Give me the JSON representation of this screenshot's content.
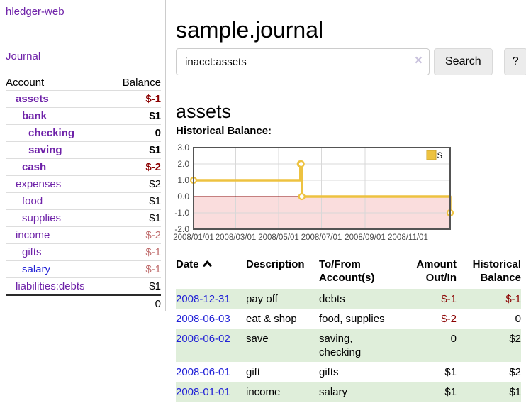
{
  "palette": {
    "purple": "#6e21a8",
    "blue": "#2222d6",
    "red_strong": "#8b0000",
    "red_faded": "#c06d6d",
    "black": "#000000",
    "green_row": "#dfeeda",
    "gold": "#edc240",
    "pink": "#fadddd",
    "zero_line": "#8b0000"
  },
  "sidebar": {
    "app_title": "hledger-web",
    "nav_journal": "Journal",
    "accounts": {
      "header_account": "Account",
      "header_balance": "Balance",
      "rows": [
        {
          "name": "assets",
          "depth": 1,
          "bold": true,
          "name_color": "purple",
          "balance": "$-1",
          "balance_color": "red_strong"
        },
        {
          "name": "bank",
          "depth": 2,
          "bold": true,
          "name_color": "purple",
          "balance": "$1",
          "balance_color": "black"
        },
        {
          "name": "checking",
          "depth": 3,
          "bold": true,
          "name_color": "purple",
          "balance": "0",
          "balance_color": "black"
        },
        {
          "name": "saving",
          "depth": 3,
          "bold": true,
          "name_color": "purple",
          "balance": "$1",
          "balance_color": "black"
        },
        {
          "name": "cash",
          "depth": 2,
          "bold": true,
          "name_color": "purple",
          "balance": "$-2",
          "balance_color": "red_strong"
        },
        {
          "name": "expenses",
          "depth": 1,
          "bold": false,
          "name_color": "purple",
          "balance": "$2",
          "balance_color": "black"
        },
        {
          "name": "food",
          "depth": 2,
          "bold": false,
          "name_color": "purple",
          "balance": "$1",
          "balance_color": "black"
        },
        {
          "name": "supplies",
          "depth": 2,
          "bold": false,
          "name_color": "purple",
          "balance": "$1",
          "balance_color": "black"
        },
        {
          "name": "income",
          "depth": 1,
          "bold": false,
          "name_color": "purple",
          "balance": "$-2",
          "balance_color": "red_faded"
        },
        {
          "name": "gifts",
          "depth": 2,
          "bold": false,
          "name_color": "purple",
          "balance": "$-1",
          "balance_color": "red_faded"
        },
        {
          "name": "salary",
          "depth": 2,
          "bold": false,
          "name_color": "blue",
          "balance": "$-1",
          "balance_color": "red_faded"
        },
        {
          "name": "liabilities:debts",
          "depth": 1,
          "bold": false,
          "name_color": "purple",
          "balance": "$1",
          "balance_color": "black"
        }
      ],
      "total": "0"
    }
  },
  "main": {
    "title": "sample.journal",
    "search": {
      "value": "inacct:assets",
      "clear_label": "×",
      "button_label": "Search",
      "help_label": "?"
    },
    "section_title": "assets",
    "chart_label": "Historical Balance:"
  },
  "chart_data": {
    "type": "line",
    "step": true,
    "title": "Historical Balance:",
    "series": [
      {
        "name": "$",
        "color": "#edc240",
        "points": [
          [
            "2008-01-01",
            1
          ],
          [
            "2008-06-01",
            2
          ],
          [
            "2008-06-02",
            2
          ],
          [
            "2008-06-03",
            0
          ],
          [
            "2008-12-31",
            -1
          ]
        ]
      }
    ],
    "x_range": [
      "2008-01-01",
      "2008-12-31"
    ],
    "x_ticks": [
      "2008/01/01",
      "2008/03/01",
      "2008/05/01",
      "2008/07/01",
      "2008/09/01",
      "2008/11/01"
    ],
    "y_ticks": [
      3.0,
      2.0,
      1.0,
      0.0,
      -1.0,
      -2.0
    ],
    "ylim": [
      -2,
      3
    ],
    "grid": true,
    "legend_position": "top-right",
    "negative_region_color": "#fadddd",
    "zero_line_color": "#8b0000"
  },
  "register": {
    "headers": [
      "Date",
      "Description",
      "To/From Account(s)",
      "Amount Out/In",
      "Historical Balance"
    ],
    "sort": {
      "column": "Date",
      "direction": "ascending"
    },
    "rows": [
      {
        "date": "2008-12-31",
        "description": "pay off",
        "accounts": "debts",
        "amount": "$-1",
        "amount_color": "red_strong",
        "balance": "$-1",
        "balance_color": "red_strong"
      },
      {
        "date": "2008-06-03",
        "description": "eat & shop",
        "accounts": "food, supplies",
        "amount": "$-2",
        "amount_color": "red_strong",
        "balance": "0",
        "balance_color": "black"
      },
      {
        "date": "2008-06-02",
        "description": "save",
        "accounts": "saving, checking",
        "amount": "0",
        "amount_color": "black",
        "balance": "$2",
        "balance_color": "black"
      },
      {
        "date": "2008-06-01",
        "description": "gift",
        "accounts": "gifts",
        "amount": "$1",
        "amount_color": "black",
        "balance": "$2",
        "balance_color": "black"
      },
      {
        "date": "2008-01-01",
        "description": "income",
        "accounts": "salary",
        "amount": "$1",
        "amount_color": "black",
        "balance": "$1",
        "balance_color": "black"
      }
    ]
  }
}
